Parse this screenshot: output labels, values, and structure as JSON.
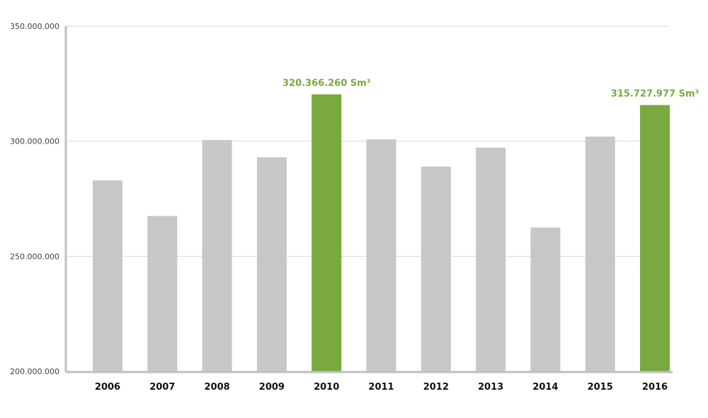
{
  "chart_data": {
    "type": "bar",
    "categories": [
      "2006",
      "2007",
      "2008",
      "2009",
      "2010",
      "2011",
      "2012",
      "2013",
      "2014",
      "2015",
      "2016"
    ],
    "series": [
      {
        "values": [
          283000000,
          267500000,
          300500000,
          293000000,
          320366260,
          300800000,
          289000000,
          297200000,
          262500000,
          302000000,
          315727977
        ]
      }
    ],
    "ylim": [
      200000000,
      350000000
    ],
    "yticks": [
      "200.000.000",
      "250.000.000",
      "300.000.000",
      "350.000.000"
    ],
    "ytick_values": [
      200000000,
      250000000,
      300000000,
      350000000
    ],
    "data_labels": [
      {
        "category": "2010",
        "text": "320.366.260 Sm³"
      },
      {
        "category": "2016",
        "text": "315.727.977 Sm³"
      }
    ],
    "highlighted_categories": [
      "2010",
      "2016"
    ],
    "grid": true,
    "colors": {
      "bar": "#c8c6c6",
      "highlight": "#7aa93f",
      "grid": "#d9d9d9",
      "axis": "#bfbfbf"
    }
  }
}
